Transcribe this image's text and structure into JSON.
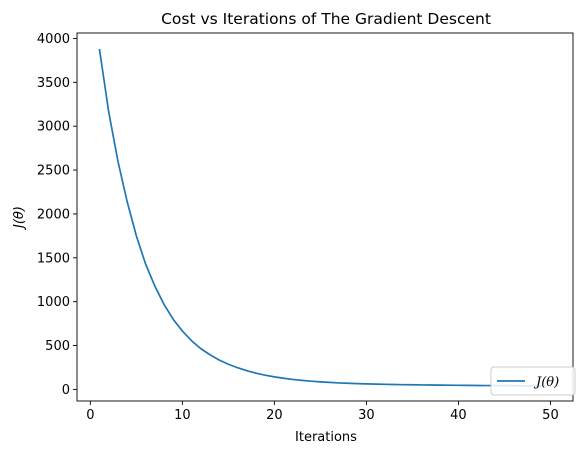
{
  "chart_data": {
    "type": "line",
    "title": "Cost vs Iterations of The Gradient Descent",
    "xlabel": "Iterations",
    "ylabel": "J(θ)",
    "xlim": [
      -1.45,
      52.45
    ],
    "ylim": [
      -132,
      4062
    ],
    "xticks": [
      0,
      10,
      20,
      30,
      40,
      50
    ],
    "yticks": [
      0,
      500,
      1000,
      1500,
      2000,
      2500,
      3000,
      3500,
      4000
    ],
    "legend_position": "lower right",
    "grid": false,
    "colors": {
      "line": "#1f77b4",
      "axes": "#000000",
      "legend_border": "#cccccc"
    },
    "series": [
      {
        "name": "J(θ)",
        "x": [
          1,
          2,
          3,
          4,
          5,
          6,
          7,
          8,
          9,
          10,
          11,
          12,
          13,
          14,
          15,
          16,
          17,
          18,
          19,
          20,
          21,
          22,
          23,
          24,
          25,
          26,
          27,
          28,
          29,
          30,
          31,
          32,
          33,
          34,
          35,
          36,
          37,
          38,
          39,
          40,
          41,
          42,
          43,
          44,
          45,
          46,
          47,
          48,
          49,
          50
        ],
        "y": [
          3870,
          3160,
          2600,
          2140,
          1750,
          1430,
          1180,
          970,
          800,
          665,
          555,
          465,
          395,
          335,
          287,
          247,
          213,
          185,
          162,
          143,
          127,
          114,
          103,
          94,
          86,
          80,
          74,
          70,
          66,
          63,
          60,
          58,
          56,
          54,
          53,
          51,
          50,
          49,
          48,
          47,
          46,
          45,
          44,
          44,
          43,
          43,
          42,
          42,
          41,
          41
        ]
      }
    ]
  }
}
